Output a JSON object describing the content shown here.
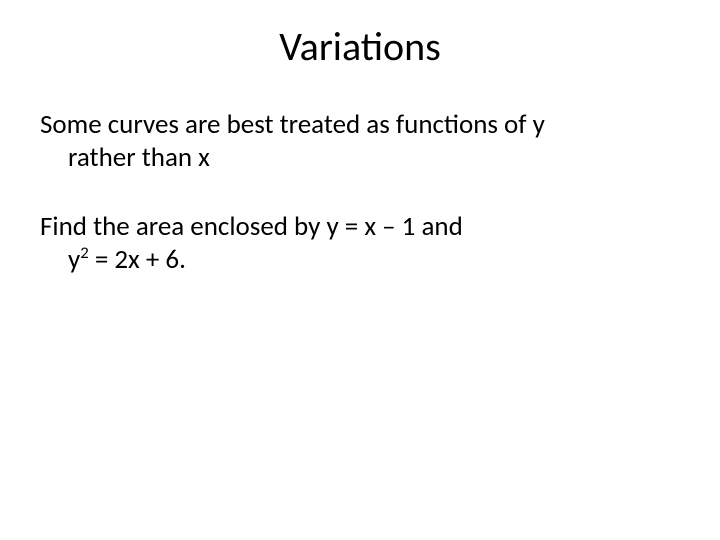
{
  "slide": {
    "title": "Variations",
    "para1_line1": "Some curves are best treated as functions of y",
    "para1_line2": "rather than x",
    "para2_line1": "Find the area enclosed by y = x – 1 and",
    "para2_line2a": "y",
    "para2_line2_sup": "2",
    "para2_line2b": " = 2x + 6."
  },
  "style": {
    "background_color": "#ffffff",
    "text_color": "#000000",
    "title_fontsize": 40,
    "body_fontsize": 27,
    "font_family": "Calibri"
  }
}
